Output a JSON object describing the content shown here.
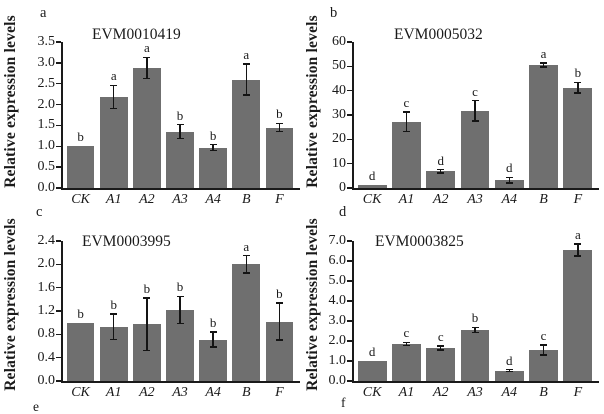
{
  "figure": {
    "background": "#ffffff",
    "bar_color": "#6f6f6f",
    "axis_color": "#1a1a1a",
    "error_bar_color": "#141414",
    "cropped_panel_letters": {
      "left": "e",
      "right": "f"
    }
  },
  "chart_data": [
    {
      "type": "bar",
      "panel_letter": "a",
      "title": "EVM0010419",
      "ylabel": "Relative expression levels",
      "categories": [
        "CK",
        "A1",
        "A2",
        "A3",
        "A4",
        "B",
        "F"
      ],
      "values": [
        1.0,
        2.18,
        2.88,
        1.35,
        0.97,
        2.6,
        1.45
      ],
      "errors": [
        0,
        0.28,
        0.25,
        0.17,
        0.07,
        0.37,
        0.1
      ],
      "sig_letters": [
        "b",
        "a",
        "a",
        "b",
        "b",
        "a",
        "b"
      ],
      "ylim": [
        0,
        3.5
      ],
      "ytick_step": 0.5,
      "ytick_decimals": 1,
      "grid": false,
      "legend": null
    },
    {
      "type": "bar",
      "panel_letter": "b",
      "title": "EVM0005032",
      "ylabel": "Relative expression levels",
      "categories": [
        "CK",
        "A1",
        "A2",
        "A3",
        "A4",
        "B",
        "F"
      ],
      "values": [
        1.2,
        27.3,
        6.8,
        31.7,
        3.2,
        50.5,
        41.2
      ],
      "errors": [
        0,
        4.0,
        0.7,
        4.2,
        1.2,
        0.8,
        2.2
      ],
      "sig_letters": [
        "d",
        "c",
        "d",
        "c",
        "d",
        "a",
        "b"
      ],
      "ylim": [
        0,
        60
      ],
      "ytick_step": 10,
      "ytick_decimals": 0,
      "grid": false,
      "legend": null
    },
    {
      "type": "bar",
      "panel_letter": "c",
      "title": "EVM0003995",
      "ylabel": "Relative expression levels",
      "categories": [
        "CK",
        "A1",
        "A2",
        "A3",
        "A4",
        "B",
        "F"
      ],
      "values": [
        1.0,
        0.93,
        0.97,
        1.22,
        0.71,
        2.0,
        1.02
      ],
      "errors": [
        0,
        0.22,
        0.45,
        0.23,
        0.13,
        0.15,
        0.32
      ],
      "sig_letters": [
        "b",
        "b",
        "b",
        "b",
        "b",
        "a",
        "b"
      ],
      "ylim": [
        0,
        2.4
      ],
      "ytick_step": 0.4,
      "ytick_decimals": 1,
      "grid": false,
      "legend": null
    },
    {
      "type": "bar",
      "panel_letter": "d",
      "title": "EVM0003825",
      "ylabel": "Relative expression levels",
      "categories": [
        "CK",
        "A1",
        "A2",
        "A3",
        "A4",
        "B",
        "F"
      ],
      "values": [
        1.0,
        1.85,
        1.65,
        2.55,
        0.52,
        1.55,
        6.55
      ],
      "errors": [
        0,
        0.08,
        0.1,
        0.13,
        0.05,
        0.25,
        0.3
      ],
      "sig_letters": [
        "d",
        "c",
        "c",
        "b",
        "d",
        "c",
        "a"
      ],
      "ylim": [
        0,
        7.0
      ],
      "ytick_step": 1.0,
      "ytick_decimals": 1,
      "grid": false,
      "legend": null
    }
  ]
}
